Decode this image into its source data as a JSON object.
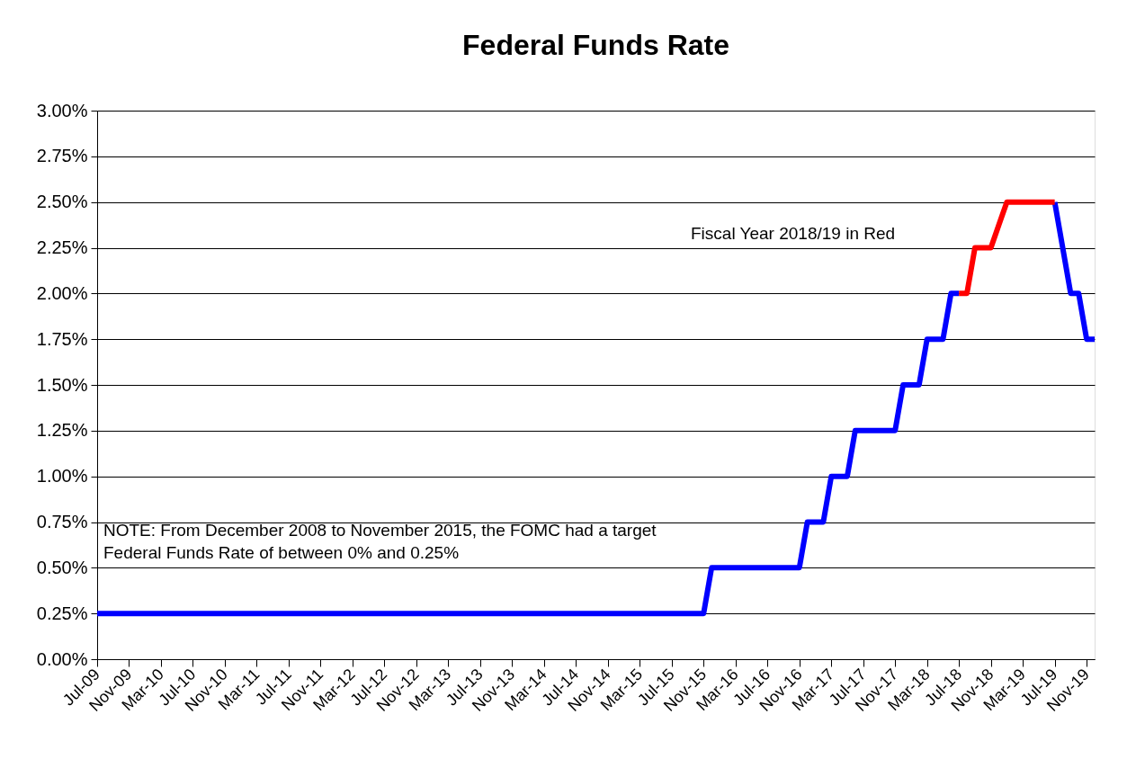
{
  "chart_data": {
    "type": "line",
    "title": "Federal Funds Rate",
    "categories": [
      "Jul-09",
      null,
      null,
      null,
      "Nov-09",
      null,
      null,
      null,
      "Mar-10",
      null,
      null,
      null,
      "Jul-10",
      null,
      null,
      null,
      "Nov-10",
      null,
      null,
      null,
      "Mar-11",
      null,
      null,
      null,
      "Jul-11",
      null,
      null,
      null,
      "Nov-11",
      null,
      null,
      null,
      "Mar-12",
      null,
      null,
      null,
      "Jul-12",
      null,
      null,
      null,
      "Nov-12",
      null,
      null,
      null,
      "Mar-13",
      null,
      null,
      null,
      "Jul-13",
      null,
      null,
      null,
      "Nov-13",
      null,
      null,
      null,
      "Mar-14",
      null,
      null,
      null,
      "Jul-14",
      null,
      null,
      null,
      "Nov-14",
      null,
      null,
      null,
      "Mar-15",
      null,
      null,
      null,
      "Jul-15",
      null,
      null,
      null,
      "Nov-15",
      null,
      null,
      null,
      "Mar-16",
      null,
      null,
      null,
      "Jul-16",
      null,
      null,
      null,
      "Nov-16",
      null,
      null,
      null,
      "Mar-17",
      null,
      null,
      null,
      "Jul-17",
      null,
      null,
      null,
      "Nov-17",
      null,
      null,
      null,
      "Mar-18",
      null,
      null,
      null,
      "Jul-18",
      null,
      null,
      null,
      "Nov-18",
      null,
      null,
      null,
      "Mar-19",
      null,
      null,
      null,
      "Jul-19",
      null,
      null,
      null,
      "Nov-19",
      null
    ],
    "series": [
      {
        "color": "#0000ff",
        "values": [
          0.25,
          0.25,
          0.25,
          0.25,
          0.25,
          0.25,
          0.25,
          0.25,
          0.25,
          0.25,
          0.25,
          0.25,
          0.25,
          0.25,
          0.25,
          0.25,
          0.25,
          0.25,
          0.25,
          0.25,
          0.25,
          0.25,
          0.25,
          0.25,
          0.25,
          0.25,
          0.25,
          0.25,
          0.25,
          0.25,
          0.25,
          0.25,
          0.25,
          0.25,
          0.25,
          0.25,
          0.25,
          0.25,
          0.25,
          0.25,
          0.25,
          0.25,
          0.25,
          0.25,
          0.25,
          0.25,
          0.25,
          0.25,
          0.25,
          0.25,
          0.25,
          0.25,
          0.25,
          0.25,
          0.25,
          0.25,
          0.25,
          0.25,
          0.25,
          0.25,
          0.25,
          0.25,
          0.25,
          0.25,
          0.25,
          0.25,
          0.25,
          0.25,
          0.25,
          0.25,
          0.25,
          0.25,
          0.25,
          0.25,
          0.25,
          0.25,
          0.25,
          0.5,
          0.5,
          0.5,
          0.5,
          0.5,
          0.5,
          0.5,
          0.5,
          0.5,
          0.5,
          0.5,
          0.5,
          0.75,
          0.75,
          0.75,
          1.0,
          1.0,
          1.0,
          1.25,
          1.25,
          1.25,
          1.25,
          1.25,
          1.25,
          1.5,
          1.5,
          1.5,
          1.75,
          1.75,
          1.75,
          2.0,
          2.0,
          null,
          null,
          null,
          null,
          null,
          null,
          null,
          null,
          null,
          null,
          null,
          2.5,
          2.25,
          2.0,
          2.0,
          1.75,
          1.75
        ]
      },
      {
        "color": "#ff0000",
        "values": [
          null,
          null,
          null,
          null,
          null,
          null,
          null,
          null,
          null,
          null,
          null,
          null,
          null,
          null,
          null,
          null,
          null,
          null,
          null,
          null,
          null,
          null,
          null,
          null,
          null,
          null,
          null,
          null,
          null,
          null,
          null,
          null,
          null,
          null,
          null,
          null,
          null,
          null,
          null,
          null,
          null,
          null,
          null,
          null,
          null,
          null,
          null,
          null,
          null,
          null,
          null,
          null,
          null,
          null,
          null,
          null,
          null,
          null,
          null,
          null,
          null,
          null,
          null,
          null,
          null,
          null,
          null,
          null,
          null,
          null,
          null,
          null,
          null,
          null,
          null,
          null,
          null,
          null,
          null,
          null,
          null,
          null,
          null,
          null,
          null,
          null,
          null,
          null,
          null,
          null,
          null,
          null,
          null,
          null,
          null,
          null,
          null,
          null,
          null,
          null,
          null,
          null,
          null,
          null,
          null,
          null,
          null,
          null,
          2.0,
          2.0,
          2.25,
          2.25,
          2.25,
          2.375,
          2.5,
          2.5,
          2.5,
          2.5,
          2.5,
          2.5,
          2.5,
          null,
          null,
          null,
          null,
          null
        ]
      }
    ],
    "ylim": [
      0,
      3
    ],
    "yticks": [
      {
        "value": 0,
        "label": "0.00%"
      },
      {
        "value": 0.25,
        "label": "0.25%"
      },
      {
        "value": 0.5,
        "label": "0.50%"
      },
      {
        "value": 0.75,
        "label": "0.75%"
      },
      {
        "value": 1,
        "label": "1.00%"
      },
      {
        "value": 1.25,
        "label": "1.25%"
      },
      {
        "value": 1.5,
        "label": "1.50%"
      },
      {
        "value": 1.75,
        "label": "1.75%"
      },
      {
        "value": 2,
        "label": "2.00%"
      },
      {
        "value": 2.25,
        "label": "2.25%"
      },
      {
        "value": 2.5,
        "label": "2.50%"
      },
      {
        "value": 2.75,
        "label": "2.75%"
      },
      {
        "value": 3,
        "label": "3.00%"
      }
    ],
    "grid": "y",
    "legend": false,
    "marker": "none",
    "line_style": "solid",
    "annotations": [
      "Fiscal Year 2018/19 in Red",
      "NOTE:  From December 2008 to November 2015, the FOMC had a target\nFederal Funds Rate of between 0% and 0.25%"
    ]
  }
}
